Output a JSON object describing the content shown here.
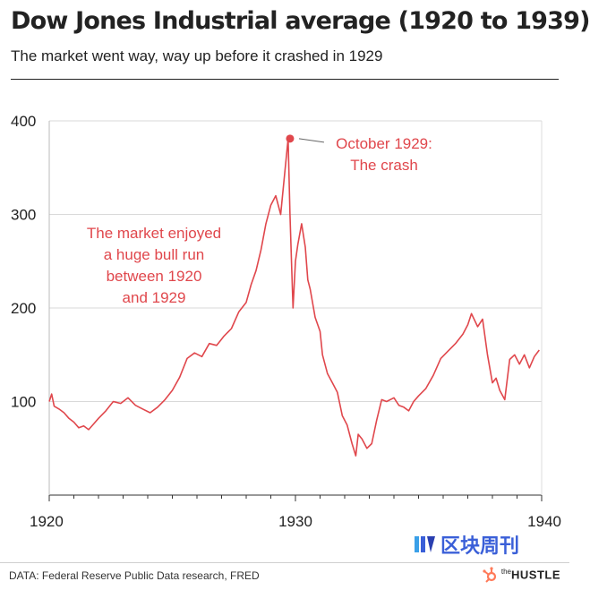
{
  "header": {
    "title": "Dow Jones Industrial average (1920 to 1939)",
    "subtitle": "The market went way, way up before it crashed in 1929"
  },
  "chart_data": {
    "type": "line",
    "title": "Dow Jones Industrial average (1920 to 1939)",
    "subtitle": "The market went way, way up before it crashed in 1929",
    "xlabel": "",
    "ylabel": "",
    "xlim": [
      1920,
      1940
    ],
    "ylim": [
      0,
      400
    ],
    "x_ticks": [
      "1920",
      "1930",
      "1940"
    ],
    "y_ticks": [
      "100",
      "200",
      "300",
      "400"
    ],
    "grid": true,
    "color": "#e0474c",
    "series": [
      {
        "name": "Dow Jones Industrial average",
        "x": [
          1920.0,
          1920.1,
          1920.2,
          1920.4,
          1920.6,
          1920.8,
          1921.0,
          1921.2,
          1921.4,
          1921.6,
          1921.8,
          1922.0,
          1922.3,
          1922.6,
          1922.9,
          1923.2,
          1923.5,
          1923.8,
          1924.1,
          1924.4,
          1924.7,
          1925.0,
          1925.3,
          1925.6,
          1925.9,
          1926.2,
          1926.5,
          1926.8,
          1927.1,
          1927.4,
          1927.7,
          1928.0,
          1928.2,
          1928.4,
          1928.6,
          1928.8,
          1929.0,
          1929.2,
          1929.4,
          1929.55,
          1929.7,
          1929.78,
          1929.85,
          1929.9,
          1930.0,
          1930.1,
          1930.25,
          1930.4,
          1930.5,
          1930.6,
          1930.8,
          1931.0,
          1931.1,
          1931.3,
          1931.5,
          1931.7,
          1931.9,
          1932.1,
          1932.3,
          1932.45,
          1932.55,
          1932.7,
          1932.9,
          1933.1,
          1933.3,
          1933.5,
          1933.7,
          1934.0,
          1934.2,
          1934.4,
          1934.6,
          1934.8,
          1935.0,
          1935.3,
          1935.6,
          1935.9,
          1936.2,
          1936.5,
          1936.8,
          1937.0,
          1937.15,
          1937.4,
          1937.6,
          1937.8,
          1938.0,
          1938.15,
          1938.3,
          1938.5,
          1938.7,
          1938.9,
          1939.1,
          1939.3,
          1939.5,
          1939.7,
          1939.9
        ],
        "values": [
          100,
          108,
          95,
          92,
          88,
          82,
          78,
          72,
          74,
          70,
          76,
          82,
          90,
          100,
          98,
          104,
          96,
          92,
          88,
          94,
          102,
          112,
          126,
          146,
          152,
          148,
          162,
          160,
          170,
          178,
          196,
          206,
          225,
          240,
          262,
          290,
          310,
          320,
          300,
          340,
          381,
          300,
          240,
          200,
          250,
          268,
          290,
          265,
          230,
          220,
          190,
          175,
          150,
          130,
          120,
          110,
          85,
          75,
          55,
          42,
          65,
          60,
          50,
          55,
          80,
          102,
          100,
          104,
          96,
          94,
          90,
          100,
          106,
          114,
          128,
          146,
          154,
          162,
          172,
          182,
          194,
          180,
          188,
          150,
          120,
          125,
          112,
          102,
          145,
          150,
          140,
          150,
          136,
          148,
          155
        ]
      }
    ],
    "annotations": [
      {
        "text_lines": [
          "October 1929:",
          "The crash"
        ],
        "x": 1929.78,
        "y": 381
      },
      {
        "text_lines": [
          "The market enjoyed",
          "a huge bull run",
          "between 1920",
          "and 1929"
        ]
      }
    ]
  },
  "footer": {
    "source": "DATA: Federal Reserve Public Data research, FRED",
    "brand_prefix": "the",
    "brand_name": "HUSTLE",
    "watermark": "区块周刊"
  }
}
